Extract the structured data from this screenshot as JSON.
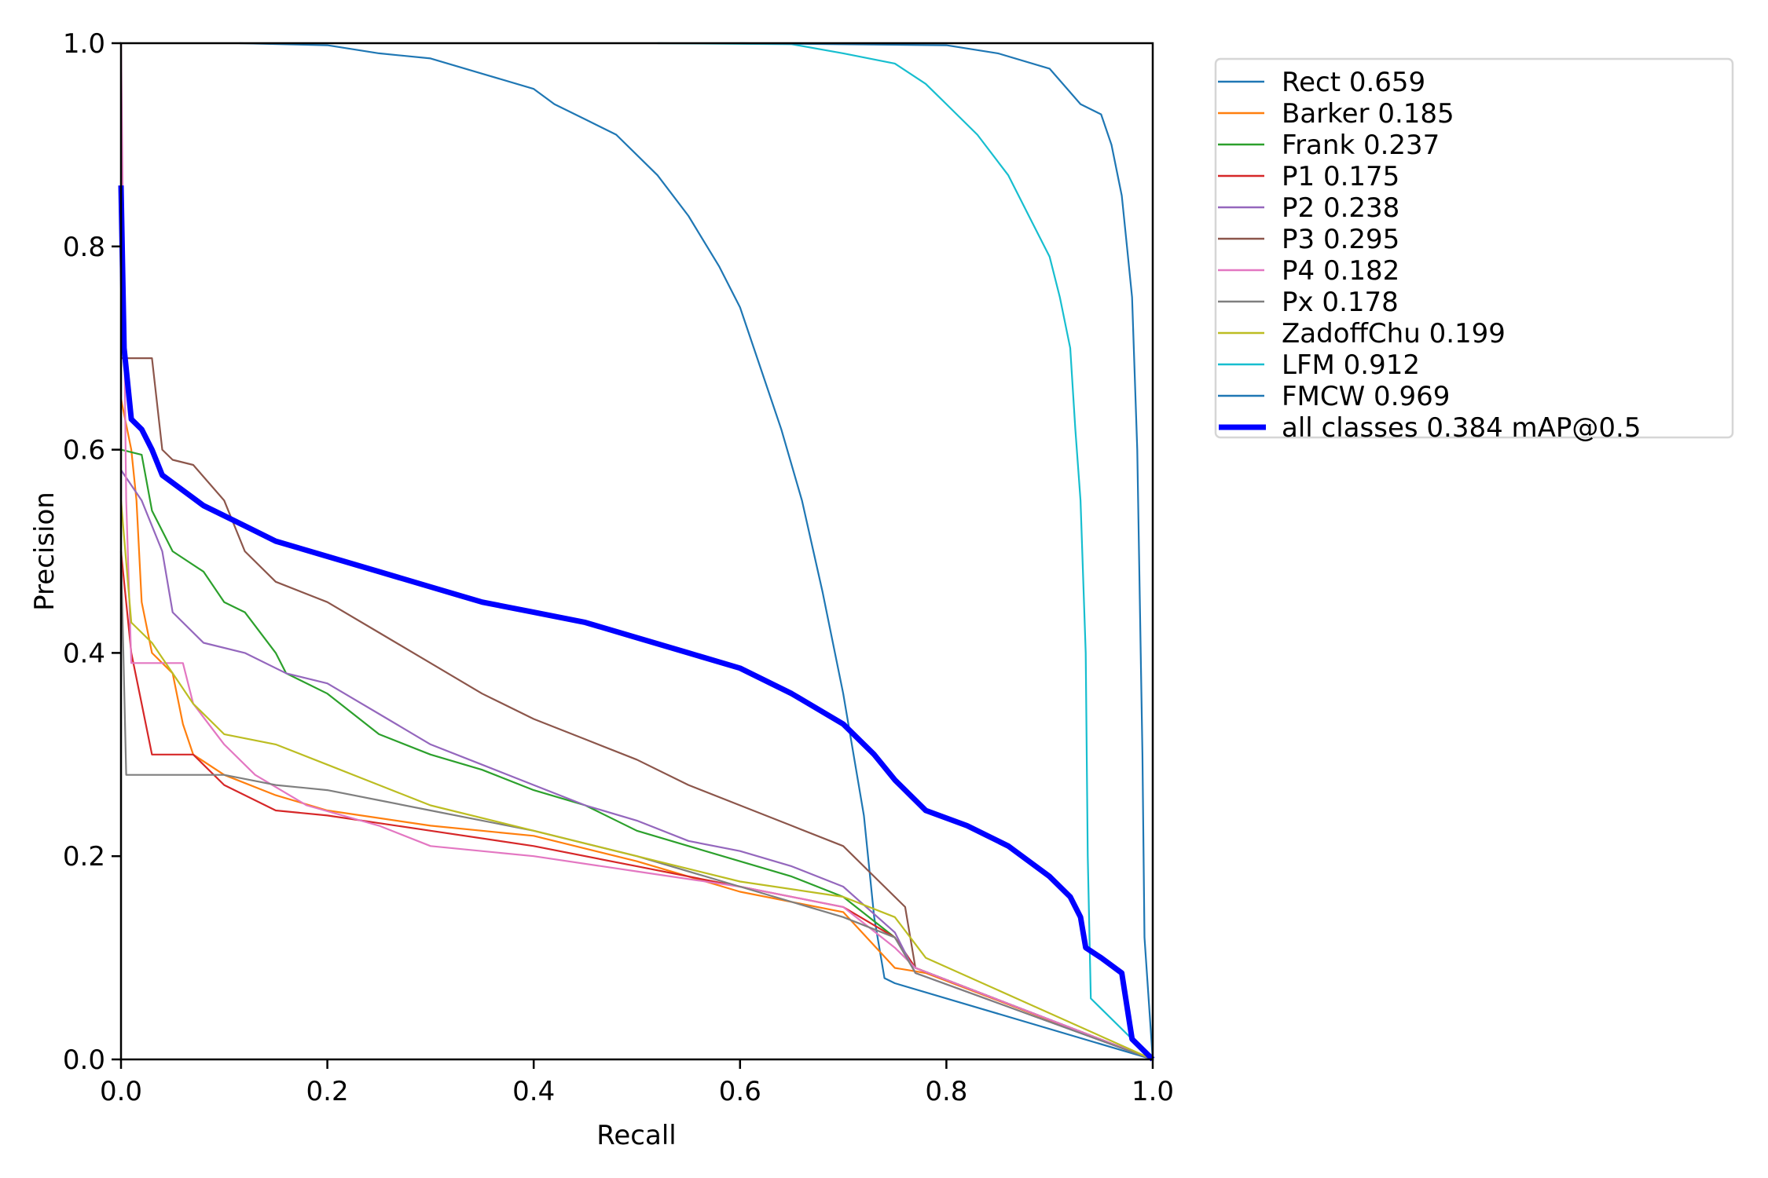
{
  "chart_data": {
    "type": "line",
    "title": "",
    "xlabel": "Recall",
    "ylabel": "Precision",
    "xlim": [
      0,
      1
    ],
    "ylim": [
      0,
      1
    ],
    "xticks": [
      "0.0",
      "0.2",
      "0.4",
      "0.6",
      "0.8",
      "1.0"
    ],
    "yticks": [
      "0.0",
      "0.2",
      "0.4",
      "0.6",
      "0.8",
      "1.0"
    ],
    "grid": false,
    "legend_placement": "outside-top-right",
    "series": [
      {
        "name": "Rect 0.659",
        "color": "#1f77b4",
        "thick": false,
        "points": [
          [
            0.115,
            1.0
          ],
          [
            0.2,
            0.998
          ],
          [
            0.25,
            0.99
          ],
          [
            0.3,
            0.985
          ],
          [
            0.35,
            0.97
          ],
          [
            0.4,
            0.955
          ],
          [
            0.42,
            0.94
          ],
          [
            0.45,
            0.925
          ],
          [
            0.48,
            0.91
          ],
          [
            0.5,
            0.89
          ],
          [
            0.52,
            0.87
          ],
          [
            0.55,
            0.83
          ],
          [
            0.58,
            0.78
          ],
          [
            0.6,
            0.74
          ],
          [
            0.62,
            0.68
          ],
          [
            0.64,
            0.62
          ],
          [
            0.66,
            0.55
          ],
          [
            0.68,
            0.46
          ],
          [
            0.7,
            0.36
          ],
          [
            0.72,
            0.24
          ],
          [
            0.73,
            0.14
          ],
          [
            0.74,
            0.08
          ],
          [
            0.75,
            0.075
          ],
          [
            1.0,
            0.0
          ]
        ]
      },
      {
        "name": "Barker 0.185",
        "color": "#ff7f0e",
        "thick": false,
        "points": [
          [
            0,
            0.65
          ],
          [
            0.01,
            0.6
          ],
          [
            0.015,
            0.55
          ],
          [
            0.02,
            0.45
          ],
          [
            0.03,
            0.4
          ],
          [
            0.05,
            0.38
          ],
          [
            0.06,
            0.33
          ],
          [
            0.07,
            0.3
          ],
          [
            0.1,
            0.28
          ],
          [
            0.15,
            0.26
          ],
          [
            0.2,
            0.245
          ],
          [
            0.3,
            0.23
          ],
          [
            0.4,
            0.22
          ],
          [
            0.5,
            0.195
          ],
          [
            0.6,
            0.165
          ],
          [
            0.7,
            0.145
          ],
          [
            0.75,
            0.09
          ],
          [
            0.78,
            0.085
          ],
          [
            1.0,
            0.0
          ]
        ]
      },
      {
        "name": "Frank 0.237",
        "color": "#2ca02c",
        "thick": false,
        "points": [
          [
            0,
            0.6
          ],
          [
            0.02,
            0.595
          ],
          [
            0.03,
            0.54
          ],
          [
            0.05,
            0.5
          ],
          [
            0.08,
            0.48
          ],
          [
            0.1,
            0.45
          ],
          [
            0.12,
            0.44
          ],
          [
            0.15,
            0.4
          ],
          [
            0.16,
            0.38
          ],
          [
            0.2,
            0.36
          ],
          [
            0.25,
            0.32
          ],
          [
            0.3,
            0.3
          ],
          [
            0.35,
            0.285
          ],
          [
            0.4,
            0.265
          ],
          [
            0.45,
            0.25
          ],
          [
            0.5,
            0.225
          ],
          [
            0.55,
            0.21
          ],
          [
            0.6,
            0.195
          ],
          [
            0.65,
            0.18
          ],
          [
            0.7,
            0.16
          ],
          [
            0.75,
            0.12
          ],
          [
            0.77,
            0.09
          ],
          [
            1.0,
            0.0
          ]
        ]
      },
      {
        "name": "P1 0.175",
        "color": "#d62728",
        "thick": false,
        "points": [
          [
            0,
            0.5
          ],
          [
            0.01,
            0.4
          ],
          [
            0.02,
            0.35
          ],
          [
            0.03,
            0.3
          ],
          [
            0.07,
            0.3
          ],
          [
            0.1,
            0.27
          ],
          [
            0.15,
            0.245
          ],
          [
            0.2,
            0.24
          ],
          [
            0.3,
            0.225
          ],
          [
            0.4,
            0.21
          ],
          [
            0.5,
            0.19
          ],
          [
            0.6,
            0.17
          ],
          [
            0.7,
            0.15
          ],
          [
            0.75,
            0.12
          ],
          [
            0.77,
            0.09
          ],
          [
            1.0,
            0.0
          ]
        ]
      },
      {
        "name": "P2 0.238",
        "color": "#9467bd",
        "thick": false,
        "points": [
          [
            0,
            0.58
          ],
          [
            0.02,
            0.55
          ],
          [
            0.04,
            0.5
          ],
          [
            0.05,
            0.44
          ],
          [
            0.08,
            0.41
          ],
          [
            0.12,
            0.4
          ],
          [
            0.16,
            0.38
          ],
          [
            0.2,
            0.37
          ],
          [
            0.25,
            0.34
          ],
          [
            0.3,
            0.31
          ],
          [
            0.35,
            0.29
          ],
          [
            0.4,
            0.27
          ],
          [
            0.45,
            0.25
          ],
          [
            0.5,
            0.235
          ],
          [
            0.55,
            0.215
          ],
          [
            0.6,
            0.205
          ],
          [
            0.65,
            0.19
          ],
          [
            0.7,
            0.17
          ],
          [
            0.75,
            0.125
          ],
          [
            0.77,
            0.085
          ],
          [
            1.0,
            0.0
          ]
        ]
      },
      {
        "name": "P3 0.295",
        "color": "#8c564b",
        "thick": false,
        "points": [
          [
            0,
            0.69
          ],
          [
            0.03,
            0.69
          ],
          [
            0.04,
            0.6
          ],
          [
            0.05,
            0.59
          ],
          [
            0.07,
            0.585
          ],
          [
            0.1,
            0.55
          ],
          [
            0.12,
            0.5
          ],
          [
            0.15,
            0.47
          ],
          [
            0.2,
            0.45
          ],
          [
            0.25,
            0.42
          ],
          [
            0.3,
            0.39
          ],
          [
            0.35,
            0.36
          ],
          [
            0.4,
            0.335
          ],
          [
            0.45,
            0.315
          ],
          [
            0.5,
            0.295
          ],
          [
            0.55,
            0.27
          ],
          [
            0.6,
            0.25
          ],
          [
            0.65,
            0.23
          ],
          [
            0.7,
            0.21
          ],
          [
            0.73,
            0.18
          ],
          [
            0.76,
            0.15
          ],
          [
            0.77,
            0.09
          ],
          [
            1.0,
            0.0
          ]
        ]
      },
      {
        "name": "P4 0.182",
        "color": "#e377c2",
        "thick": false,
        "points": [
          [
            0,
            1.0
          ],
          [
            0.005,
            0.55
          ],
          [
            0.01,
            0.39
          ],
          [
            0.06,
            0.39
          ],
          [
            0.07,
            0.35
          ],
          [
            0.1,
            0.31
          ],
          [
            0.13,
            0.28
          ],
          [
            0.18,
            0.25
          ],
          [
            0.25,
            0.23
          ],
          [
            0.3,
            0.21
          ],
          [
            0.4,
            0.2
          ],
          [
            0.5,
            0.185
          ],
          [
            0.6,
            0.17
          ],
          [
            0.7,
            0.15
          ],
          [
            0.75,
            0.11
          ],
          [
            0.77,
            0.09
          ],
          [
            1.0,
            0.0
          ]
        ]
      },
      {
        "name": "Px 0.178",
        "color": "#7f7f7f",
        "thick": false,
        "points": [
          [
            0,
            0.5
          ],
          [
            0.005,
            0.28
          ],
          [
            0.1,
            0.28
          ],
          [
            0.15,
            0.27
          ],
          [
            0.2,
            0.265
          ],
          [
            0.25,
            0.255
          ],
          [
            0.3,
            0.245
          ],
          [
            0.4,
            0.225
          ],
          [
            0.5,
            0.2
          ],
          [
            0.6,
            0.17
          ],
          [
            0.7,
            0.14
          ],
          [
            0.75,
            0.12
          ],
          [
            0.77,
            0.085
          ],
          [
            1.0,
            0.0
          ]
        ]
      },
      {
        "name": "ZadoffChu 0.199",
        "color": "#bcbd22",
        "thick": false,
        "points": [
          [
            0,
            0.55
          ],
          [
            0.01,
            0.43
          ],
          [
            0.03,
            0.41
          ],
          [
            0.05,
            0.38
          ],
          [
            0.07,
            0.35
          ],
          [
            0.1,
            0.32
          ],
          [
            0.15,
            0.31
          ],
          [
            0.2,
            0.29
          ],
          [
            0.25,
            0.27
          ],
          [
            0.3,
            0.25
          ],
          [
            0.4,
            0.225
          ],
          [
            0.5,
            0.2
          ],
          [
            0.6,
            0.175
          ],
          [
            0.7,
            0.16
          ],
          [
            0.75,
            0.14
          ],
          [
            0.78,
            0.1
          ],
          [
            1.0,
            0.0
          ]
        ]
      },
      {
        "name": "LFM 0.912",
        "color": "#17becf",
        "thick": false,
        "points": [
          [
            0.52,
            1.0
          ],
          [
            0.65,
            0.999
          ],
          [
            0.7,
            0.99
          ],
          [
            0.75,
            0.98
          ],
          [
            0.78,
            0.96
          ],
          [
            0.8,
            0.94
          ],
          [
            0.83,
            0.91
          ],
          [
            0.86,
            0.87
          ],
          [
            0.88,
            0.83
          ],
          [
            0.9,
            0.79
          ],
          [
            0.91,
            0.75
          ],
          [
            0.92,
            0.7
          ],
          [
            0.925,
            0.62
          ],
          [
            0.93,
            0.55
          ],
          [
            0.935,
            0.4
          ],
          [
            0.937,
            0.2
          ],
          [
            0.94,
            0.06
          ],
          [
            0.98,
            0.02
          ],
          [
            1.0,
            0.0
          ]
        ]
      },
      {
        "name": "FMCW 0.969",
        "color": "#1f77b4",
        "thick": false,
        "points": [
          [
            0.6,
            1.0
          ],
          [
            0.8,
            0.998
          ],
          [
            0.85,
            0.99
          ],
          [
            0.9,
            0.975
          ],
          [
            0.93,
            0.94
          ],
          [
            0.95,
            0.93
          ],
          [
            0.96,
            0.9
          ],
          [
            0.97,
            0.85
          ],
          [
            0.975,
            0.8
          ],
          [
            0.98,
            0.75
          ],
          [
            0.985,
            0.6
          ],
          [
            0.99,
            0.3
          ],
          [
            0.992,
            0.12
          ],
          [
            1.0,
            0.0
          ]
        ]
      },
      {
        "name": "all classes 0.384 mAP@0.5",
        "color": "#0000ff",
        "thick": true,
        "points": [
          [
            0,
            0.86
          ],
          [
            0.003,
            0.7
          ],
          [
            0.01,
            0.63
          ],
          [
            0.02,
            0.62
          ],
          [
            0.03,
            0.6
          ],
          [
            0.04,
            0.575
          ],
          [
            0.06,
            0.56
          ],
          [
            0.08,
            0.545
          ],
          [
            0.1,
            0.535
          ],
          [
            0.12,
            0.525
          ],
          [
            0.15,
            0.51
          ],
          [
            0.2,
            0.495
          ],
          [
            0.25,
            0.48
          ],
          [
            0.3,
            0.465
          ],
          [
            0.35,
            0.45
          ],
          [
            0.4,
            0.44
          ],
          [
            0.45,
            0.43
          ],
          [
            0.5,
            0.415
          ],
          [
            0.55,
            0.4
          ],
          [
            0.6,
            0.385
          ],
          [
            0.65,
            0.36
          ],
          [
            0.7,
            0.33
          ],
          [
            0.73,
            0.3
          ],
          [
            0.75,
            0.275
          ],
          [
            0.78,
            0.245
          ],
          [
            0.82,
            0.23
          ],
          [
            0.86,
            0.21
          ],
          [
            0.9,
            0.18
          ],
          [
            0.92,
            0.16
          ],
          [
            0.93,
            0.14
          ],
          [
            0.935,
            0.11
          ],
          [
            0.95,
            0.1
          ],
          [
            0.97,
            0.085
          ],
          [
            0.98,
            0.02
          ],
          [
            1.0,
            0.0
          ]
        ]
      }
    ]
  }
}
